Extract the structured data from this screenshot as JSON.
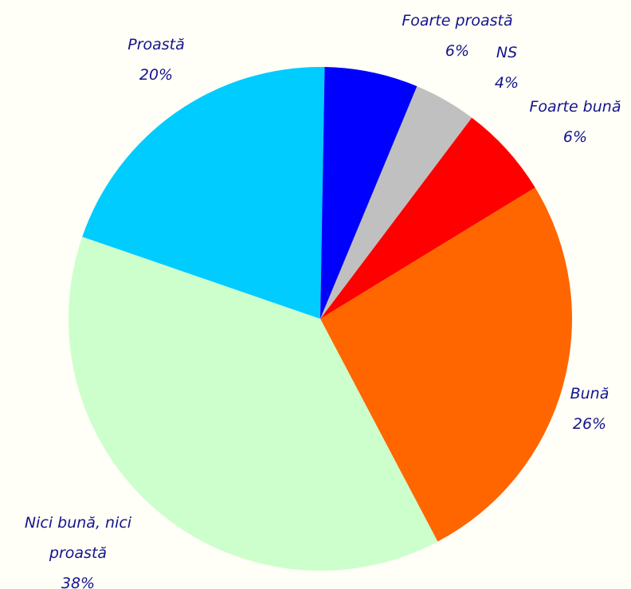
{
  "chart_data": {
    "type": "pie",
    "title": "",
    "slices": [
      {
        "label": "Foarte bună",
        "value": 6,
        "value_label": "6%",
        "color": "#ff0000"
      },
      {
        "label": "Bună",
        "value": 26,
        "value_label": "26%",
        "color": "#ff6600"
      },
      {
        "label": "Nici bună, nici proastă",
        "value": 38,
        "value_label": "38%",
        "color": "#ccffcc"
      },
      {
        "label": "Proastă",
        "value": 20,
        "value_label": "20%",
        "color": "#00ccff"
      },
      {
        "label": "Foarte proastă",
        "value": 6,
        "value_label": "6%",
        "color": "#0000ff"
      },
      {
        "label": "NS",
        "value": 4,
        "value_label": "4%",
        "color": "#c0c0c0"
      }
    ]
  }
}
